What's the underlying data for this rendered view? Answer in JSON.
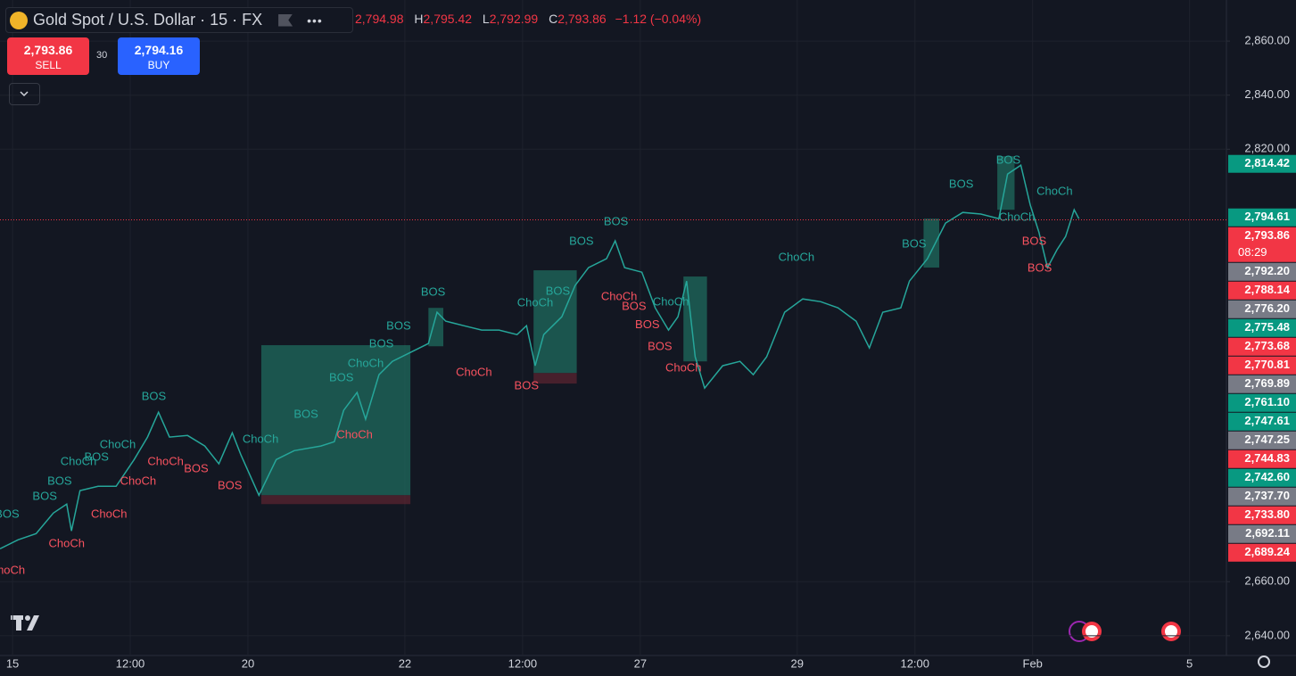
{
  "header": {
    "symbol": "Gold Spot / U.S. Dollar · 15 · FX",
    "ohlc": {
      "open": "2,794.98",
      "high_key": "H",
      "high": "2,795.42",
      "low_key": "L",
      "low": "2,792.99",
      "close_key": "C",
      "close": "2,793.86",
      "change": "−1.12 (−0.04%)"
    }
  },
  "trade": {
    "sell_price": "2,793.86",
    "sell": "SELL",
    "spread": "30",
    "buy_price": "2,794.16",
    "buy": "BUY"
  },
  "chart_data": {
    "type": "line",
    "x": [
      -0.16,
      0.07,
      0.3,
      0.52,
      0.69,
      0.75,
      0.86,
      1.09,
      1.32,
      1.55,
      1.72,
      1.86,
      2.0,
      2.23,
      2.45,
      2.63,
      2.8,
      2.91,
      3.14,
      3.36,
      3.59,
      3.93,
      4.1,
      4.22,
      4.39,
      4.5,
      4.67,
      4.84,
      5.07,
      5.3,
      5.41,
      5.52,
      5.75,
      5.98,
      6.2,
      6.43,
      6.55,
      6.66,
      6.77,
      7.0,
      7.17,
      7.34,
      7.57,
      7.68,
      7.8,
      8.02,
      8.19,
      8.36,
      8.48,
      8.59,
      8.7,
      8.82,
      9.05,
      9.27,
      9.44,
      9.61,
      9.84,
      10.07,
      10.3,
      10.52,
      10.75,
      10.92,
      11.09,
      11.32,
      11.43,
      11.66,
      11.89,
      12.11,
      12.34,
      12.57,
      12.68,
      12.85,
      12.97,
      13.08,
      13.19,
      13.31,
      13.42,
      13.53,
      13.59
    ],
    "series": [
      {
        "color": "#26a69a",
        "values": [
          2672.2,
          2675.5,
          2677.8,
          2685.4,
          2688.7,
          2678.8,
          2693.7,
          2695.3,
          2695.3,
          2705.2,
          2713.5,
          2722.7,
          2713.5,
          2714.1,
          2710.2,
          2703.6,
          2715.1,
          2706.9,
          2692.0,
          2705.2,
          2708.5,
          2710.2,
          2711.8,
          2723.4,
          2730.0,
          2720.1,
          2736.6,
          2741.5,
          2744.8,
          2748.1,
          2759.7,
          2756.4,
          2754.7,
          2753.1,
          2753.1,
          2751.4,
          2754.7,
          2739.9,
          2751.4,
          2758.0,
          2769.6,
          2776.2,
          2779.5,
          2786.1,
          2776.2,
          2774.5,
          2761.3,
          2753.1,
          2758.0,
          2771.2,
          2743.2,
          2731.6,
          2739.9,
          2741.5,
          2736.6,
          2743.2,
          2759.7,
          2764.6,
          2763.6,
          2761.3,
          2756.4,
          2746.5,
          2759.7,
          2761.3,
          2771.2,
          2779.5,
          2792.7,
          2796.6,
          2796.0,
          2794.3,
          2810.8,
          2814.1,
          2799.3,
          2789.4,
          2776.2,
          2782.8,
          2787.7,
          2797.6,
          2794.3
        ]
      }
    ],
    "xlim": [
      -0.16,
      15.47
    ],
    "xticks": [
      {
        "value": 0,
        "label": "15"
      },
      {
        "value": 1.5,
        "label": "12:00"
      },
      {
        "value": 3,
        "label": "20"
      },
      {
        "value": 5,
        "label": "22"
      },
      {
        "value": 6.5,
        "label": "12:00"
      },
      {
        "value": 8,
        "label": "27"
      },
      {
        "value": 10,
        "label": "29"
      },
      {
        "value": 11.5,
        "label": "12:00"
      },
      {
        "value": 13,
        "label": "Feb"
      },
      {
        "value": 15,
        "label": "5"
      }
    ],
    "ylim": [
      2632.7,
      2875.2
    ],
    "yticks": [
      {
        "value": 2640,
        "label": "2,640.00"
      },
      {
        "value": 2660,
        "label": "2,660.00"
      },
      {
        "value": 2820,
        "label": "2,820.00"
      },
      {
        "value": 2840,
        "label": "2,840.00"
      },
      {
        "value": 2860,
        "label": "2,860.00"
      }
    ],
    "grid": true,
    "last_price": 2793.86,
    "last_price_color": "#f23645",
    "price_tags": [
      {
        "value": 2814.42,
        "label": "2,814.42",
        "color": "#089981"
      },
      {
        "value": 2794.61,
        "label": "2,794.61",
        "color": "#089981"
      },
      {
        "value": 2793.86,
        "label": "2,793.86",
        "color": "#f23645",
        "countdown": "08:29"
      },
      {
        "value": 2792.2,
        "label": "2,792.20",
        "color": "#787b86"
      },
      {
        "value": 2788.14,
        "label": "2,788.14",
        "color": "#f23645"
      },
      {
        "value": 2776.2,
        "label": "2,776.20",
        "color": "#787b86"
      },
      {
        "value": 2775.48,
        "label": "2,775.48",
        "color": "#089981"
      },
      {
        "value": 2773.68,
        "label": "2,773.68",
        "color": "#f23645"
      },
      {
        "value": 2770.81,
        "label": "2,770.81",
        "color": "#f23645"
      },
      {
        "value": 2769.89,
        "label": "2,769.89",
        "color": "#787b86"
      },
      {
        "value": 2761.1,
        "label": "2,761.10",
        "color": "#089981"
      },
      {
        "value": 2747.61,
        "label": "2,747.61",
        "color": "#089981"
      },
      {
        "value": 2747.25,
        "label": "2,747.25",
        "color": "#787b86"
      },
      {
        "value": 2744.83,
        "label": "2,744.83",
        "color": "#f23645"
      },
      {
        "value": 2742.6,
        "label": "2,742.60",
        "color": "#089981"
      },
      {
        "value": 2737.7,
        "label": "2,737.70",
        "color": "#787b86"
      },
      {
        "value": 2733.8,
        "label": "2,733.80",
        "color": "#f23645"
      },
      {
        "value": 2692.11,
        "label": "2,692.11",
        "color": "#787b86"
      },
      {
        "value": 2689.24,
        "label": "2,689.24",
        "color": "#f23645"
      }
    ],
    "zones": [
      {
        "x0": 3.17,
        "x1": 5.07,
        "y0": 2692.0,
        "y1": 2747.5,
        "color": "#1f6b5e"
      },
      {
        "x0": 3.17,
        "x1": 5.07,
        "y0": 2688.7,
        "y1": 2692.0,
        "color": "#5a2430"
      },
      {
        "x0": 5.3,
        "x1": 5.49,
        "y0": 2747.1,
        "y1": 2761.3,
        "color": "#1f6b5e"
      },
      {
        "x0": 6.64,
        "x1": 7.19,
        "y0": 2737.2,
        "y1": 2775.2,
        "color": "#1f6b5e"
      },
      {
        "x0": 6.64,
        "x1": 7.19,
        "y0": 2733.3,
        "y1": 2737.2,
        "color": "#5a2430"
      },
      {
        "x0": 8.55,
        "x1": 8.85,
        "y0": 2741.5,
        "y1": 2772.9,
        "color": "#1f6b5e"
      },
      {
        "x0": 11.61,
        "x1": 11.81,
        "y0": 2776.2,
        "y1": 2794.3,
        "color": "#1f6b5e"
      },
      {
        "x0": 12.55,
        "x1": 12.77,
        "y0": 2797.6,
        "y1": 2817.4,
        "color": "#1f6b5e"
      }
    ],
    "annotations": [
      {
        "text": "ChoCh",
        "x": -0.07,
        "y": 2664.0,
        "color": "#f7525f"
      },
      {
        "text": "BOS",
        "x": -0.07,
        "y": 2684.8,
        "color": "#26a69a"
      },
      {
        "text": "BOS",
        "x": 0.41,
        "y": 2691.4,
        "color": "#26a69a"
      },
      {
        "text": "ChoCh",
        "x": 0.69,
        "y": 2673.9,
        "color": "#f7525f"
      },
      {
        "text": "BOS",
        "x": 0.6,
        "y": 2697.0,
        "color": "#26a69a"
      },
      {
        "text": "ChoCh",
        "x": 0.84,
        "y": 2704.2,
        "color": "#26a69a"
      },
      {
        "text": "ChoCh",
        "x": 1.23,
        "y": 2684.8,
        "color": "#f7525f"
      },
      {
        "text": "BOS",
        "x": 1.07,
        "y": 2705.9,
        "color": "#26a69a"
      },
      {
        "text": "ChoCh",
        "x": 1.6,
        "y": 2697.0,
        "color": "#f7525f"
      },
      {
        "text": "ChoCh",
        "x": 1.34,
        "y": 2710.5,
        "color": "#26a69a"
      },
      {
        "text": "ChoCh",
        "x": 1.95,
        "y": 2704.2,
        "color": "#f7525f"
      },
      {
        "text": "BOS",
        "x": 1.8,
        "y": 2728.3,
        "color": "#26a69a"
      },
      {
        "text": "BOS",
        "x": 2.34,
        "y": 2701.6,
        "color": "#f7525f"
      },
      {
        "text": "BOS",
        "x": 2.77,
        "y": 2695.3,
        "color": "#f7525f"
      },
      {
        "text": "ChoCh",
        "x": 3.16,
        "y": 2712.5,
        "color": "#26a69a"
      },
      {
        "text": "BOS",
        "x": 3.74,
        "y": 2721.7,
        "color": "#26a69a"
      },
      {
        "text": "ChoCh",
        "x": 4.36,
        "y": 2714.1,
        "color": "#f7525f"
      },
      {
        "text": "BOS",
        "x": 4.19,
        "y": 2735.3,
        "color": "#26a69a"
      },
      {
        "text": "ChoCh",
        "x": 4.5,
        "y": 2740.5,
        "color": "#26a69a"
      },
      {
        "text": "BOS",
        "x": 4.7,
        "y": 2747.8,
        "color": "#26a69a"
      },
      {
        "text": "BOS",
        "x": 4.92,
        "y": 2754.4,
        "color": "#26a69a"
      },
      {
        "text": "BOS",
        "x": 5.36,
        "y": 2766.9,
        "color": "#26a69a"
      },
      {
        "text": "ChoCh",
        "x": 5.88,
        "y": 2737.2,
        "color": "#f7525f"
      },
      {
        "text": "BOS",
        "x": 6.55,
        "y": 2732.3,
        "color": "#f7525f"
      },
      {
        "text": "ChoCh",
        "x": 6.66,
        "y": 2763.0,
        "color": "#26a69a"
      },
      {
        "text": "BOS",
        "x": 6.95,
        "y": 2767.3,
        "color": "#26a69a"
      },
      {
        "text": "BOS",
        "x": 7.25,
        "y": 2785.7,
        "color": "#26a69a"
      },
      {
        "text": "BOS",
        "x": 7.69,
        "y": 2793.0,
        "color": "#26a69a"
      },
      {
        "text": "ChoCh",
        "x": 7.73,
        "y": 2765.3,
        "color": "#f7525f"
      },
      {
        "text": "BOS",
        "x": 7.92,
        "y": 2761.7,
        "color": "#f7525f"
      },
      {
        "text": "BOS",
        "x": 8.09,
        "y": 2755.0,
        "color": "#f7525f"
      },
      {
        "text": "BOS",
        "x": 8.25,
        "y": 2746.8,
        "color": "#f7525f"
      },
      {
        "text": "ChoCh",
        "x": 8.55,
        "y": 2738.9,
        "color": "#f7525f"
      },
      {
        "text": "ChoCh",
        "x": 8.39,
        "y": 2763.3,
        "color": "#26a69a"
      },
      {
        "text": "ChoCh",
        "x": 9.99,
        "y": 2779.8,
        "color": "#26a69a"
      },
      {
        "text": "BOS",
        "x": 11.49,
        "y": 2784.8,
        "color": "#26a69a"
      },
      {
        "text": "BOS",
        "x": 12.09,
        "y": 2806.9,
        "color": "#26a69a"
      },
      {
        "text": "BOS",
        "x": 12.69,
        "y": 2815.8,
        "color": "#26a69a"
      },
      {
        "text": "ChoCh",
        "x": 13.28,
        "y": 2804.2,
        "color": "#26a69a"
      },
      {
        "text": "ChoCh",
        "x": 12.8,
        "y": 2794.7,
        "color": "#26a69a"
      },
      {
        "text": "BOS",
        "x": 13.02,
        "y": 2785.7,
        "color": "#f7525f"
      },
      {
        "text": "BOS",
        "x": 13.09,
        "y": 2775.8,
        "color": "#f7525f"
      }
    ]
  }
}
